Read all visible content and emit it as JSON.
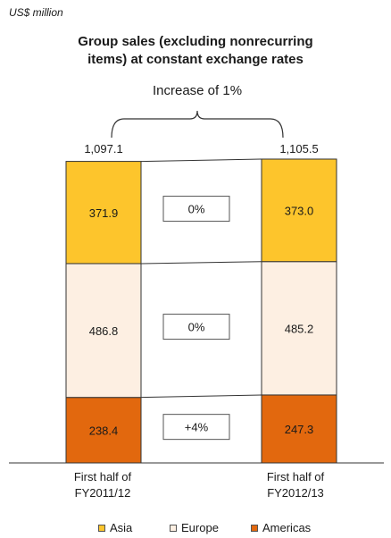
{
  "unit_label": "US$ million",
  "chart_data": {
    "type": "bar",
    "stacked": true,
    "title_lines": [
      "Group sales (excluding nonrecurring",
      "items) at constant exchange rates"
    ],
    "categories": [
      [
        "First half of",
        "FY2011/12"
      ],
      [
        "First half of",
        "FY2012/13"
      ]
    ],
    "totals": [
      "1,097.1",
      "1,105.5"
    ],
    "total_values": [
      1097.1,
      1105.5
    ],
    "increase_label": "Increase of 1%",
    "series": [
      {
        "name": "Americas",
        "values": [
          238.4,
          247.3
        ],
        "labels": [
          "238.4",
          "247.3"
        ],
        "color": "#e2680e",
        "change": "+4%"
      },
      {
        "name": "Europe",
        "values": [
          486.8,
          485.2
        ],
        "labels": [
          "486.8",
          "485.2"
        ],
        "color": "#fdefe2",
        "change": "0%"
      },
      {
        "name": "Asia",
        "values": [
          371.9,
          373.0
        ],
        "labels": [
          "371.9",
          "373.0"
        ],
        "color": "#fdc52c",
        "change": "0%"
      }
    ],
    "legend_order": [
      "Asia",
      "Europe",
      "Americas"
    ],
    "ylim": [
      0,
      1105.5
    ],
    "grid": false
  }
}
